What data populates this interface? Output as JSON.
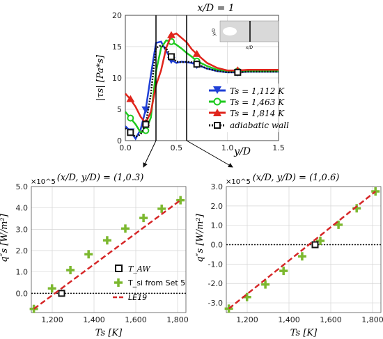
{
  "chart_data": [
    {
      "type": "line",
      "title": "x/D = 1",
      "xlabel": "y/D",
      "ylabel": "|τs| [Pa*s]",
      "xlim": [
        0,
        1.5
      ],
      "ylim": [
        0,
        20
      ],
      "x_ticks": [
        "0.0",
        "0.5",
        "1.0",
        "1.5"
      ],
      "y_ticks": [
        "0",
        "5",
        "10",
        "15",
        "20"
      ],
      "grid": true,
      "legend_position": "right",
      "series": [
        {
          "name": "Ts = 1,112 K",
          "color": "#1f3fd6",
          "marker": "triangle-down",
          "x": [
            0.0,
            0.05,
            0.1,
            0.15,
            0.2,
            0.25,
            0.3,
            0.35,
            0.4,
            0.45,
            0.5,
            0.55,
            0.6,
            0.65,
            0.7,
            0.8,
            0.9,
            1.0,
            1.1,
            1.2,
            1.3,
            1.4,
            1.5
          ],
          "y": [
            2.3,
            1.5,
            0.3,
            1.8,
            5.0,
            10.5,
            15.6,
            15.8,
            14.3,
            12.9,
            12.4,
            12.6,
            12.5,
            12.4,
            12.1,
            11.5,
            11.1,
            10.9,
            10.9,
            11.0,
            11.0,
            11.0,
            11.0
          ]
        },
        {
          "name": "Ts = 1,463 K",
          "color": "#1ec91e",
          "marker": "circle",
          "x": [
            0.0,
            0.05,
            0.1,
            0.15,
            0.2,
            0.25,
            0.3,
            0.35,
            0.4,
            0.45,
            0.5,
            0.55,
            0.6,
            0.65,
            0.7,
            0.8,
            0.9,
            1.0,
            1.1,
            1.2,
            1.3,
            1.4,
            1.5
          ],
          "y": [
            4.6,
            3.6,
            2.6,
            1.3,
            1.6,
            3.7,
            11.0,
            14.8,
            16.0,
            15.8,
            15.3,
            14.7,
            14.0,
            13.4,
            12.7,
            11.9,
            11.3,
            11.1,
            11.1,
            11.1,
            11.1,
            11.1,
            11.1
          ]
        },
        {
          "name": "Ts = 1,814 K",
          "color": "#e0251c",
          "marker": "triangle-up",
          "x": [
            0.0,
            0.05,
            0.1,
            0.15,
            0.2,
            0.25,
            0.3,
            0.35,
            0.4,
            0.45,
            0.5,
            0.55,
            0.6,
            0.65,
            0.7,
            0.8,
            0.9,
            1.0,
            1.1,
            1.2,
            1.3,
            1.4,
            1.5
          ],
          "y": [
            7.5,
            6.6,
            5.4,
            3.8,
            2.8,
            4.6,
            8.8,
            11.2,
            14.8,
            16.8,
            17.1,
            16.4,
            15.7,
            14.6,
            13.8,
            12.4,
            11.6,
            11.2,
            11.2,
            11.3,
            11.3,
            11.3,
            11.3
          ]
        },
        {
          "name": "adiabatic wall",
          "color": "#111111",
          "marker": "square",
          "dashed": true,
          "x": [
            0.0,
            0.05,
            0.1,
            0.15,
            0.2,
            0.25,
            0.3,
            0.35,
            0.4,
            0.45,
            0.5,
            0.55,
            0.6,
            0.65,
            0.7,
            0.8,
            0.9,
            1.0,
            1.1,
            1.2,
            1.3,
            1.4,
            1.5
          ],
          "y": [
            2.0,
            1.3,
            0.6,
            1.0,
            2.6,
            7.5,
            14.8,
            15.2,
            14.7,
            13.4,
            12.6,
            12.5,
            12.6,
            12.5,
            12.2,
            11.5,
            11.1,
            10.9,
            10.9,
            11.0,
            11.0,
            11.0,
            11.0
          ]
        }
      ],
      "inset": {
        "xlabel": "x/D",
        "ylabel": "y/D"
      },
      "callouts": [
        "y/D = 0.3",
        "y/D = 0.6"
      ]
    },
    {
      "type": "scatter",
      "title": "(x/D, y/D) = (1,0.3)",
      "xlabel": "Ts [K]",
      "ylabel": "q″s [W/m²]",
      "xlim": [
        1100,
        1840
      ],
      "ylim": [
        -0.9,
        5.0
      ],
      "y_multiplier": "×10^5",
      "x_ticks": [
        "1,200",
        "1,400",
        "1,600",
        "1,800"
      ],
      "y_ticks": [
        "0.0",
        "1.0",
        "2.0",
        "3.0",
        "4.0",
        "5.0"
      ],
      "grid": true,
      "legend_position": "bottom-right",
      "legend": [
        "T_AW",
        "T_si from Set 5",
        "LE19"
      ],
      "series": [
        {
          "name": "T_si from Set 5",
          "color": "#7cb82f",
          "marker": "plus",
          "x": [
            1112,
            1199,
            1287,
            1374,
            1463,
            1550,
            1637,
            1724,
            1814
          ],
          "y": [
            -0.73,
            0.23,
            1.09,
            1.83,
            2.48,
            3.03,
            3.53,
            3.96,
            4.36
          ]
        },
        {
          "name": "T_AW",
          "color": "#111111",
          "marker": "square",
          "x": [
            1245
          ],
          "y": [
            0.0
          ]
        },
        {
          "name": "LE19",
          "color": "#d62728",
          "dashed": true,
          "x": [
            1112,
            1814
          ],
          "y": [
            -0.73,
            4.36
          ]
        }
      ],
      "zero_line": true
    },
    {
      "type": "scatter",
      "title": "(x/D, y/D) = (1,0.6)",
      "xlabel": "Ts [K]",
      "ylabel": "q″s [W/m²]",
      "xlim": [
        1100,
        1840
      ],
      "ylim": [
        -3.5,
        3.0
      ],
      "y_multiplier": "×10^5",
      "x_ticks": [
        "1,200",
        "1,400",
        "1,600",
        "1,800"
      ],
      "y_ticks": [
        "-3.0",
        "-2.0",
        "-1.0",
        "0.0",
        "1.0",
        "2.0",
        "3.0"
      ],
      "grid": true,
      "series": [
        {
          "name": "T_si from Set 5",
          "color": "#7cb82f",
          "marker": "plus",
          "x": [
            1112,
            1199,
            1287,
            1374,
            1463,
            1550,
            1637,
            1724,
            1814
          ],
          "y": [
            -3.3,
            -2.7,
            -2.05,
            -1.35,
            -0.6,
            0.2,
            1.03,
            1.88,
            2.75
          ]
        },
        {
          "name": "T_AW",
          "color": "#111111",
          "marker": "square",
          "x": [
            1525
          ],
          "y": [
            0.0
          ]
        },
        {
          "name": "LE19",
          "color": "#d62728",
          "dashed": true,
          "x": [
            1112,
            1814
          ],
          "y": [
            -3.3,
            2.75
          ]
        }
      ],
      "zero_line": true
    }
  ]
}
